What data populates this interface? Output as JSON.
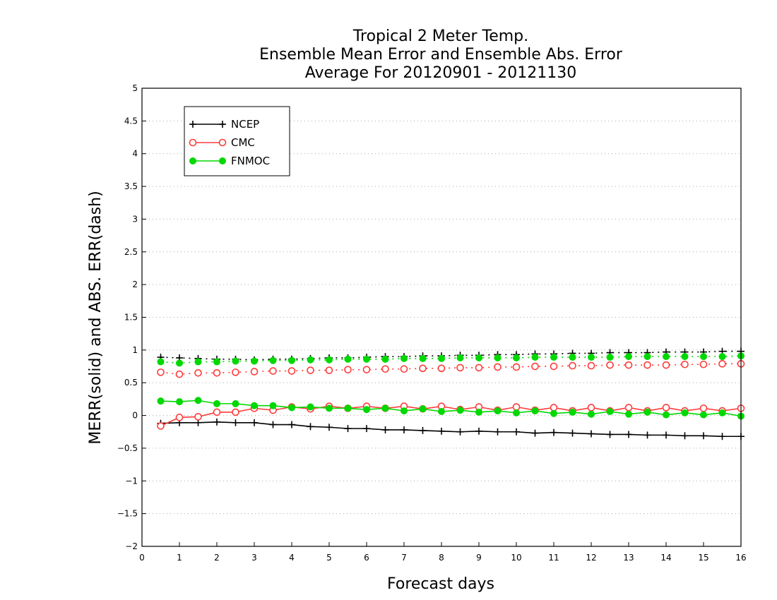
{
  "chart_data": {
    "type": "line",
    "title": [
      "Tropical 2 Meter Temp.",
      "Ensemble Mean Error and Ensemble Abs. Error",
      "Average For 20120901 - 20121130"
    ],
    "xlabel": "Forecast days",
    "ylabel": "MERR(solid) and ABS. ERR(dash)",
    "xlim": [
      0,
      16
    ],
    "ylim": [
      -2,
      5
    ],
    "xticks": [
      0,
      1,
      2,
      3,
      4,
      5,
      6,
      7,
      8,
      9,
      10,
      11,
      12,
      13,
      14,
      15,
      16
    ],
    "yticks": [
      -2,
      -1.5,
      -1,
      -0.5,
      0,
      0.5,
      1,
      1.5,
      2,
      2.5,
      3,
      3.5,
      4,
      4.5,
      5
    ],
    "ytick_labels": [
      "−2",
      "−1.5",
      "−1",
      "−0.5",
      "0",
      "0.5",
      "1",
      "1.5",
      "2",
      "2.5",
      "3",
      "3.5",
      "4",
      "4.5",
      "5"
    ],
    "grid": "horizontal dotted",
    "legend_position": "top-left",
    "x": [
      0.5,
      1,
      1.5,
      2,
      2.5,
      3,
      3.5,
      4,
      4.5,
      5,
      5.5,
      6,
      6.5,
      7,
      7.5,
      8,
      8.5,
      9,
      9.5,
      10,
      10.5,
      11,
      11.5,
      12,
      12.5,
      13,
      13.5,
      14,
      14.5,
      15,
      15.5,
      16
    ],
    "series": [
      {
        "name": "NCEP",
        "color": "#000000",
        "marker": "plus",
        "merr": [
          -0.12,
          -0.11,
          -0.11,
          -0.1,
          -0.11,
          -0.11,
          -0.14,
          -0.14,
          -0.17,
          -0.18,
          -0.2,
          -0.2,
          -0.22,
          -0.22,
          -0.23,
          -0.24,
          -0.25,
          -0.24,
          -0.25,
          -0.25,
          -0.27,
          -0.26,
          -0.27,
          -0.28,
          -0.29,
          -0.29,
          -0.3,
          -0.3,
          -0.31,
          -0.31,
          -0.32,
          -0.32
        ],
        "abs_err": [
          0.89,
          0.88,
          0.87,
          0.86,
          0.86,
          0.85,
          0.86,
          0.86,
          0.87,
          0.88,
          0.88,
          0.89,
          0.9,
          0.9,
          0.91,
          0.91,
          0.92,
          0.92,
          0.93,
          0.93,
          0.94,
          0.94,
          0.95,
          0.95,
          0.96,
          0.96,
          0.96,
          0.97,
          0.97,
          0.97,
          0.98,
          0.98
        ]
      },
      {
        "name": "CMC",
        "color": "#ff3b3b",
        "marker": "open-circle",
        "merr": [
          -0.16,
          -0.03,
          -0.02,
          0.05,
          0.05,
          0.11,
          0.08,
          0.13,
          0.1,
          0.14,
          0.11,
          0.14,
          0.11,
          0.14,
          0.1,
          0.14,
          0.09,
          0.13,
          0.08,
          0.13,
          0.08,
          0.12,
          0.07,
          0.12,
          0.07,
          0.12,
          0.07,
          0.12,
          0.07,
          0.11,
          0.07,
          0.11
        ],
        "abs_err": [
          0.66,
          0.63,
          0.65,
          0.65,
          0.66,
          0.67,
          0.68,
          0.68,
          0.69,
          0.69,
          0.7,
          0.7,
          0.71,
          0.71,
          0.72,
          0.72,
          0.73,
          0.73,
          0.74,
          0.74,
          0.75,
          0.75,
          0.76,
          0.76,
          0.77,
          0.77,
          0.77,
          0.77,
          0.78,
          0.78,
          0.79,
          0.79
        ]
      },
      {
        "name": "FNMOC",
        "color": "#00d800",
        "marker": "filled-circle",
        "merr": [
          0.22,
          0.21,
          0.23,
          0.18,
          0.18,
          0.15,
          0.15,
          0.12,
          0.13,
          0.11,
          0.11,
          0.09,
          0.11,
          0.07,
          0.1,
          0.06,
          0.08,
          0.05,
          0.07,
          0.04,
          0.07,
          0.03,
          0.05,
          0.02,
          0.06,
          0.02,
          0.05,
          0.01,
          0.04,
          0.01,
          0.04,
          -0.01
        ],
        "abs_err": [
          0.82,
          0.8,
          0.82,
          0.82,
          0.83,
          0.83,
          0.84,
          0.84,
          0.85,
          0.85,
          0.86,
          0.86,
          0.86,
          0.87,
          0.87,
          0.87,
          0.88,
          0.88,
          0.88,
          0.88,
          0.89,
          0.89,
          0.89,
          0.89,
          0.89,
          0.9,
          0.9,
          0.9,
          0.9,
          0.9,
          0.9,
          0.91
        ]
      }
    ]
  }
}
